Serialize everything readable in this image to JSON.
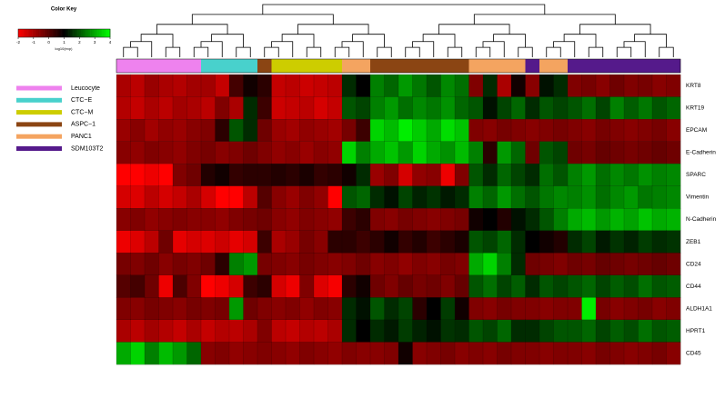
{
  "chart_data": {
    "type": "heatmap",
    "colorbar": {
      "title": "Color Key",
      "label": "log10(exp)",
      "zlim": [
        -2,
        4
      ],
      "ticks": [
        -2,
        -1,
        0,
        1,
        2,
        3,
        4
      ],
      "colors": [
        "#ff0000",
        "#000000",
        "#00ff00"
      ]
    },
    "column_groups": {
      "names": [
        "Leucocyte",
        "CTC−E",
        "CTC−M",
        "ASPC−1",
        "PANC1",
        "SDM103T2"
      ],
      "colors": [
        "#ee82ee",
        "#48d1cc",
        "#cdcd00",
        "#8b4513",
        "#f4a460",
        "#551a8b"
      ],
      "assignments": [
        0,
        0,
        0,
        0,
        0,
        0,
        1,
        1,
        1,
        1,
        3,
        2,
        2,
        2,
        2,
        2,
        4,
        4,
        3,
        3,
        3,
        3,
        3,
        3,
        3,
        4,
        4,
        4,
        4,
        5,
        4,
        4,
        5,
        5,
        5,
        5,
        5,
        5,
        5,
        5
      ]
    },
    "rows": [
      {
        "name": "KRT8",
        "values": [
          -1,
          -1.2,
          -0.8,
          -1,
          -1.1,
          -0.9,
          -0.9,
          -1.3,
          0.2,
          0.8,
          0.5,
          -1.3,
          -1.2,
          -1.4,
          -1.3,
          -1.2,
          1.5,
          1,
          2.5,
          2.2,
          2.8,
          2.4,
          2,
          2.6,
          2.3,
          -0.5,
          1.5,
          -1,
          0.8,
          -0.6,
          1.2,
          1.5,
          -0.5,
          -0.4,
          -0.6,
          -0.3,
          -0.5,
          -0.4,
          -0.6,
          -0.5
        ]
      },
      {
        "name": "KRT19",
        "values": [
          -1.1,
          -1.3,
          -1,
          -1.2,
          -0.9,
          -1,
          -1.2,
          -0.5,
          -1,
          1.5,
          0.3,
          -1.4,
          -1.3,
          -1.2,
          -1.5,
          -1.3,
          2,
          1.8,
          2.5,
          2.8,
          2.3,
          2.6,
          2.4,
          2.7,
          2.2,
          2,
          1.2,
          1.8,
          2.2,
          1.5,
          2,
          1.8,
          2,
          2.3,
          1.8,
          2.5,
          2.1,
          2.4,
          2,
          2.2
        ]
      },
      {
        "name": "EPCAM",
        "values": [
          -0.8,
          -0.6,
          -0.9,
          -0.7,
          -0.8,
          -0.6,
          -0.5,
          0.5,
          2,
          1.5,
          -0.3,
          -0.8,
          -0.9,
          -0.7,
          -0.8,
          -0.9,
          -0.4,
          0.3,
          3.5,
          3.2,
          3.8,
          3.4,
          3,
          3.6,
          3.3,
          -0.5,
          -0.6,
          -0.4,
          -0.5,
          -0.6,
          -0.5,
          -0.4,
          -0.5,
          -0.6,
          -0.4,
          -0.5,
          -0.6,
          -0.5,
          -0.4,
          -0.6
        ]
      },
      {
        "name": "E-Cadherin",
        "values": [
          -0.6,
          -0.7,
          -0.5,
          -0.6,
          -0.7,
          -0.5,
          -0.4,
          -0.6,
          -0.5,
          -0.3,
          -0.5,
          -0.7,
          -0.6,
          -0.8,
          -0.6,
          -0.7,
          3.5,
          2.5,
          3,
          3.3,
          2.8,
          3.5,
          3,
          2.7,
          3.2,
          2.5,
          0.5,
          2.8,
          2.2,
          -0.3,
          2,
          1.8,
          -0.3,
          -0.4,
          -0.2,
          -0.3,
          -0.4,
          -0.3,
          -0.2,
          -0.3
        ]
      },
      {
        "name": "SPARC",
        "values": [
          -2,
          -2,
          -1.8,
          -2,
          -0.5,
          -0.3,
          0.6,
          0.8,
          0.4,
          0.5,
          0.5,
          0.6,
          0.5,
          0.7,
          0.4,
          0.5,
          0.8,
          1.5,
          -0.8,
          -0.5,
          -1.5,
          -0.7,
          -0.6,
          -1.8,
          -0.5,
          2,
          1.5,
          2.2,
          1.8,
          1.5,
          2.3,
          2,
          2.5,
          2.8,
          2.3,
          2.6,
          2.4,
          2.7,
          2.5,
          2.6
        ]
      },
      {
        "name": "Vimentin",
        "values": [
          -1.5,
          -1.6,
          -1.2,
          -1.5,
          -1.3,
          -1,
          -1.5,
          -2,
          -2,
          -1.2,
          0,
          -0.6,
          -0.8,
          -0.5,
          -0.7,
          -2,
          2,
          2.2,
          1.5,
          1.2,
          1.8,
          1.4,
          1.6,
          1.3,
          1.5,
          2.5,
          2.2,
          2.8,
          2.3,
          2,
          2.4,
          2.6,
          2.5,
          2.7,
          2.3,
          2.6,
          2.8,
          2.4,
          2.5,
          2.6
        ]
      },
      {
        "name": "N-Cadherin",
        "values": [
          -0.6,
          -0.5,
          -0.7,
          -0.6,
          -0.5,
          -0.6,
          -0.6,
          -0.7,
          -0.5,
          -0.4,
          -0.3,
          -0.6,
          -0.7,
          -0.5,
          -0.6,
          -0.7,
          0.3,
          0.5,
          -0.5,
          -0.6,
          -0.4,
          -0.5,
          -0.6,
          -0.5,
          -0.4,
          0.8,
          1,
          0.6,
          1.2,
          1.5,
          2,
          2.5,
          3,
          3.2,
          2.8,
          3.1,
          2.9,
          3.3,
          3,
          3.1
        ]
      },
      {
        "name": "ZEB1",
        "values": [
          -1.8,
          -1.6,
          -1.2,
          -0.3,
          -1.7,
          -1.5,
          -1.6,
          -1.4,
          -1.7,
          -1.5,
          0.3,
          -1,
          -0.8,
          -0.4,
          -0.6,
          0.5,
          0.5,
          0.3,
          0.5,
          0.8,
          0.4,
          0.6,
          0.3,
          0.5,
          0.7,
          2,
          1.8,
          2.2,
          1.5,
          1,
          0.8,
          0.6,
          1.5,
          1.8,
          1.3,
          1.6,
          1.4,
          1.7,
          1.5,
          1.6
        ]
      },
      {
        "name": "CD24",
        "values": [
          -0.4,
          -0.5,
          -0.3,
          -0.6,
          -0.4,
          -0.5,
          -0.3,
          0.5,
          2.5,
          2.8,
          -0.4,
          -0.5,
          -0.6,
          -0.4,
          -0.5,
          -0.6,
          -0.5,
          -0.3,
          -0.6,
          -0.5,
          -0.7,
          -0.5,
          -0.6,
          -0.4,
          -0.5,
          3,
          3.5,
          2.5,
          1.5,
          -0.3,
          -0.4,
          -0.5,
          -0.3,
          -0.4,
          -0.2,
          -0.3,
          -0.4,
          -0.3,
          -0.2,
          -0.3
        ]
      },
      {
        "name": "CD44",
        "values": [
          0,
          0.2,
          -0.3,
          -1.8,
          0.1,
          -0.5,
          -2,
          -1.8,
          -1.5,
          0.3,
          0.5,
          -1.5,
          -1.8,
          -0.5,
          -1.6,
          -1.9,
          0.5,
          0.8,
          -0.3,
          -0.5,
          -0.2,
          -0.4,
          -0.3,
          -0.5,
          -0.2,
          2,
          2.3,
          1.8,
          2.1,
          1.5,
          2,
          1.8,
          2,
          2.2,
          1.8,
          2.1,
          1.9,
          2.3,
          2,
          2.1
        ]
      },
      {
        "name": "ALDH1A1",
        "values": [
          -0.5,
          -0.6,
          -0.4,
          -0.5,
          -0.6,
          -0.4,
          -0.5,
          -0.4,
          2.8,
          -0.3,
          -0.5,
          -0.6,
          -0.5,
          -0.7,
          -0.5,
          -0.6,
          1.5,
          1.2,
          2,
          1.5,
          1.8,
          0.5,
          1,
          1.7,
          0.8,
          -0.5,
          -0.6,
          -0.4,
          -0.5,
          -0.5,
          -0.6,
          -0.5,
          -0.5,
          3.8,
          -0.4,
          -0.6,
          -0.5,
          -0.4,
          -0.6,
          -0.5
        ]
      },
      {
        "name": "HPRT1",
        "values": [
          -1,
          -1.2,
          -0.9,
          -1.1,
          -1.3,
          -1,
          -1.3,
          -1.1,
          -1.2,
          -1,
          -0.5,
          -1.2,
          -1.3,
          -1.1,
          -1.2,
          -1,
          1.5,
          1,
          1.5,
          1.3,
          1.7,
          1.4,
          1.2,
          1.6,
          1.5,
          2,
          1.8,
          2.2,
          1.5,
          1.5,
          1.8,
          2,
          2,
          2.2,
          1.8,
          2.1,
          1.9,
          2.3,
          2,
          2.1
        ]
      },
      {
        "name": "CD45",
        "values": [
          3,
          3.5,
          2.5,
          3.2,
          2.8,
          2.2,
          -0.6,
          -0.5,
          -0.7,
          -0.6,
          -0.5,
          -0.6,
          -0.7,
          -0.5,
          -0.6,
          -0.7,
          -0.5,
          -0.6,
          -0.6,
          -0.5,
          0.8,
          -0.6,
          -0.5,
          -0.4,
          -0.6,
          -0.5,
          -0.6,
          -0.4,
          -0.5,
          -0.5,
          -0.6,
          -0.5,
          -0.5,
          -0.6,
          -0.4,
          -0.5,
          -0.6,
          -0.5,
          -0.4,
          -0.6
        ]
      }
    ]
  }
}
